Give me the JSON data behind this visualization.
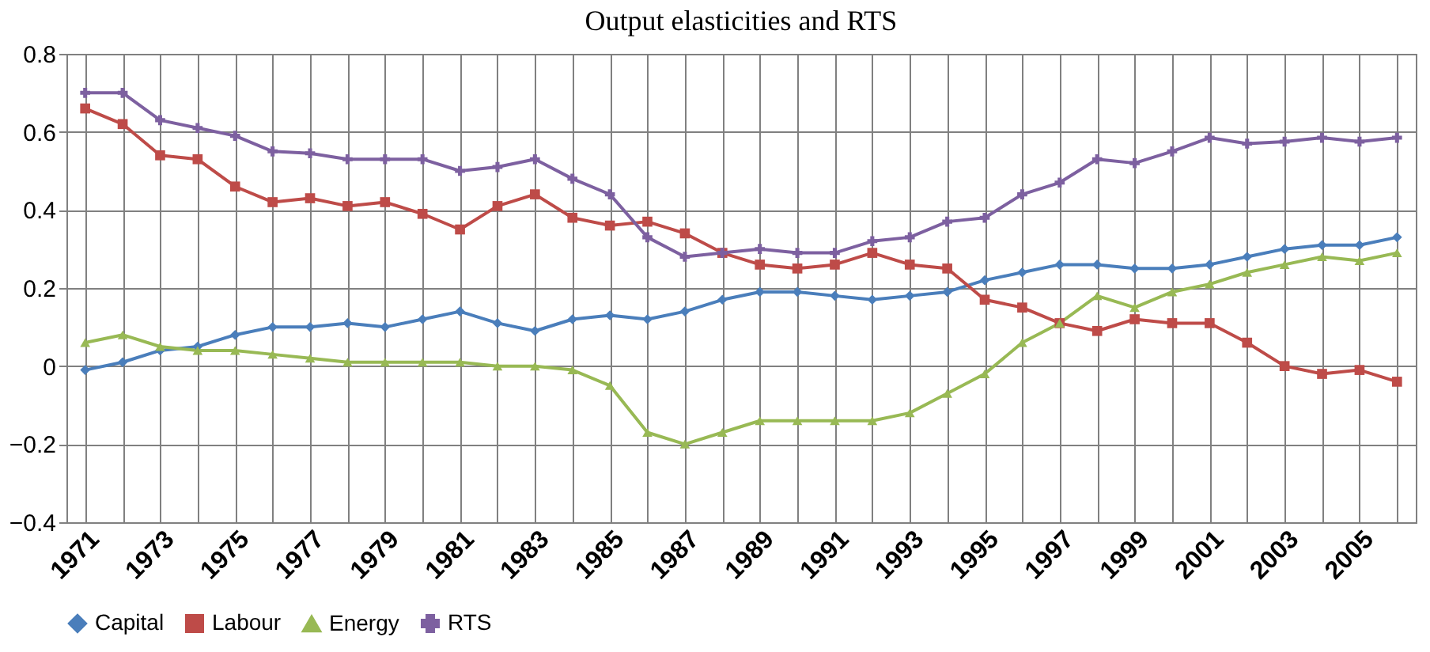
{
  "chart_data": {
    "type": "line",
    "title": "Output elasticities and RTS",
    "categories": [
      "1971",
      null,
      "1973",
      null,
      "1975",
      null,
      "1977",
      null,
      "1979",
      null,
      "1981",
      null,
      "1983",
      null,
      "1985",
      null,
      "1987",
      null,
      "1989",
      null,
      "1991",
      null,
      "1993",
      null,
      "1995",
      null,
      "1997",
      null,
      "1999",
      null,
      "2001",
      null,
      "2003",
      null,
      "2005",
      null
    ],
    "series": [
      {
        "name": "Capital",
        "color": "#4a7ebb",
        "marker": "diamond",
        "values": [
          -0.01,
          0.01,
          0.04,
          0.05,
          0.08,
          0.1,
          0.1,
          0.11,
          0.1,
          0.12,
          0.14,
          0.11,
          0.09,
          0.12,
          0.13,
          0.12,
          0.14,
          0.17,
          0.19,
          0.19,
          0.18,
          0.17,
          0.18,
          0.19,
          0.22,
          0.24,
          0.26,
          0.26,
          0.25,
          0.25,
          0.26,
          0.28,
          0.3,
          0.31,
          0.31,
          0.33
        ]
      },
      {
        "name": "Labour",
        "color": "#be4b48",
        "marker": "square",
        "values": [
          0.66,
          0.62,
          0.54,
          0.53,
          0.46,
          0.42,
          0.43,
          0.41,
          0.42,
          0.39,
          0.35,
          0.41,
          0.44,
          0.38,
          0.36,
          0.37,
          0.34,
          0.29,
          0.26,
          0.25,
          0.26,
          0.29,
          0.26,
          0.25,
          0.17,
          0.15,
          0.11,
          0.09,
          0.12,
          0.11,
          0.11,
          0.06,
          0.0,
          -0.02,
          -0.01,
          -0.04
        ]
      },
      {
        "name": "Energy",
        "color": "#98b954",
        "marker": "triangle",
        "values": [
          0.06,
          0.08,
          0.05,
          0.04,
          0.04,
          0.03,
          0.02,
          0.01,
          0.01,
          0.01,
          0.01,
          0.0,
          0.0,
          -0.01,
          -0.05,
          -0.17,
          -0.2,
          -0.17,
          -0.14,
          -0.14,
          -0.14,
          -0.14,
          -0.12,
          -0.07,
          -0.02,
          0.06,
          0.11,
          0.18,
          0.15,
          0.19,
          0.21,
          0.24,
          0.26,
          0.28,
          0.27,
          0.29
        ]
      },
      {
        "name": "RTS",
        "color": "#7d60a0",
        "marker": "cross",
        "values": [
          0.7,
          0.7,
          0.63,
          0.61,
          0.59,
          0.55,
          0.545,
          0.53,
          0.53,
          0.53,
          0.5,
          0.51,
          0.53,
          0.48,
          0.44,
          0.33,
          0.28,
          0.29,
          0.3,
          0.29,
          0.29,
          0.32,
          0.33,
          0.37,
          0.38,
          0.44,
          0.47,
          0.53,
          0.52,
          0.55,
          0.585,
          0.57,
          0.575,
          0.585,
          0.575,
          0.585
        ]
      }
    ],
    "ylim": [
      -0.4,
      0.8
    ],
    "yticks": [
      -0.4,
      -0.2,
      0,
      0.2,
      0.4,
      0.6,
      0.8
    ],
    "grid": true,
    "legend": "bottom"
  }
}
